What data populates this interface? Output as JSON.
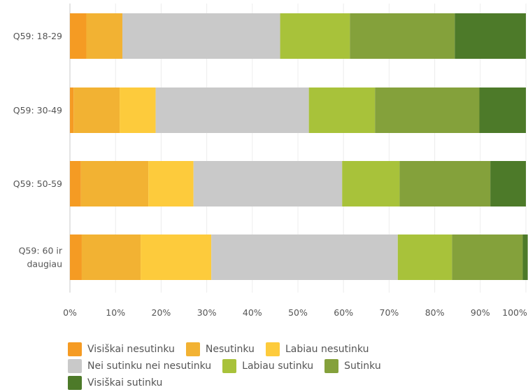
{
  "chart_data": {
    "type": "bar",
    "orientation": "horizontal",
    "stacked": true,
    "categories": [
      "Q59: 18-29",
      "Q59: 30-49",
      "Q59: 50-59",
      "Q59: 60 ir daugiau"
    ],
    "category_lines": [
      [
        "Q59: 18-29"
      ],
      [
        "Q59: 30-49"
      ],
      [
        "Q59: 50-59"
      ],
      [
        "Q59: 60 ir",
        "daugiau"
      ]
    ],
    "series": [
      {
        "name": "Visiškai nesutinku",
        "color": "#f59b23",
        "values": [
          3.6,
          0.8,
          2.4,
          2.6
        ]
      },
      {
        "name": "Nesutinku",
        "color": "#f2b233",
        "values": [
          7.9,
          10.1,
          14.8,
          12.9
        ]
      },
      {
        "name": "Labiau nesutinku",
        "color": "#fdcb3c",
        "values": [
          0.0,
          7.9,
          9.9,
          15.5
        ]
      },
      {
        "name": "Nei sutinku nei nesutinku",
        "color": "#c9c9c9",
        "values": [
          34.6,
          33.6,
          32.6,
          40.9
        ]
      },
      {
        "name": "Labiau sutinku",
        "color": "#a8c23a",
        "values": [
          15.3,
          14.5,
          12.6,
          11.9
        ]
      },
      {
        "name": "Sutinku",
        "color": "#84a13b",
        "values": [
          23.0,
          22.9,
          19.9,
          15.5
        ]
      },
      {
        "name": "Visiškai sutinku",
        "color": "#4d7a29",
        "values": [
          15.6,
          10.2,
          7.8,
          1.1
        ]
      }
    ],
    "xticks": [
      "0%",
      "10%",
      "20%",
      "30%",
      "40%",
      "50%",
      "60%",
      "70%",
      "80%",
      "90%",
      "100%"
    ],
    "xlim": [
      0,
      100
    ],
    "grid": true,
    "legend_position": "bottom"
  }
}
